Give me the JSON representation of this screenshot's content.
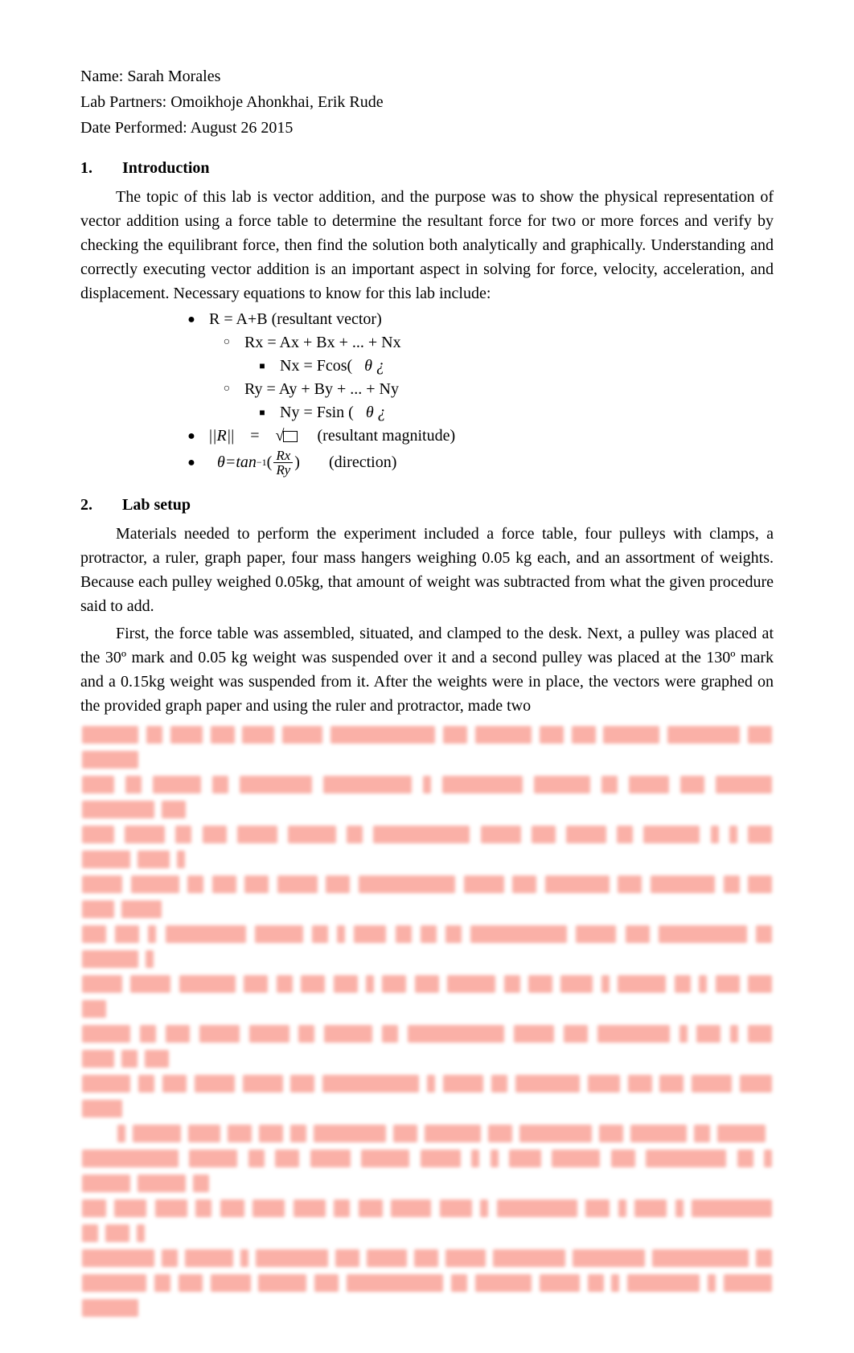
{
  "header": {
    "name_label": "Name: ",
    "name_value": "Sarah Morales",
    "partners_label": "Lab Partners: ",
    "partners_value": "Omoikhoje Ahonkhai, Erik Rude",
    "date_label": "Date Performed: ",
    "date_value": "August 26 2015"
  },
  "sections": {
    "intro": {
      "number": "1.",
      "title": "Introduction",
      "paragraph": "The topic of this lab is vector addition, and the purpose was to show the physical representation of vector addition using a force table to determine the resultant force for two or more forces and verify by checking the equilibrant force, then find the solution both analytically and graphically. Understanding and correctly executing vector addition is an important aspect in solving for force, velocity, acceleration, and displacement. Necessary equations to know for this lab include:"
    },
    "equations": {
      "r_eq": "R = A+B (resultant vector)",
      "rx": "Rx = Ax + Bx + ... + Nx",
      "nx_pre": "Nx = Fcos(",
      "theta1": "θ ¿",
      "ry": "Ry = Ay + By + ... + Ny",
      "ny_pre": "Ny = Fsin (",
      "theta2": "θ ¿",
      "mag_lhs": "|R|",
      "mag_eq": "=",
      "mag_sqrt": "√",
      "mag_label": "(resultant magnitude)",
      "dir_theta": "θ",
      "dir_eq": "=",
      "dir_tan": "tan",
      "dir_exp": "−1",
      "dir_lp": "(",
      "dir_num": "Rx",
      "dir_den": "Ry",
      "dir_rp": ")",
      "dir_label": "(direction)"
    },
    "setup": {
      "number": "2.",
      "title": "Lab setup",
      "paragraph1": "Materials needed to perform the experiment included a force table, four pulleys with clamps, a protractor, a ruler, graph paper, four mass hangers weighing 0.05 kg each, and an assortment of weights. Because each pulley weighed 0.05kg, that amount of weight was subtracted from what the given procedure said to add.",
      "paragraph2": "First, the force table was assembled, situated, and clamped to the desk. Next, a pulley was placed at the 30º mark and 0.05 kg weight was suspended over it and a second pulley was placed at the 130º mark and a 0.15kg weight was suspended from it. After the weights were in place, the vectors were graphed on the provided graph paper and using the ruler and protractor, made two"
    }
  },
  "obscured": {
    "color": "#fab0a7",
    "lines": [
      [
        [
          "xxxxxxx xx xxxx xxx xxxx xxxxx xxxxxxxxxxxxx xxx xxxxxxx xxx xxx xxxxxxx xxxxxxxxx xxx xxxxxxx"
        ]
      ],
      [
        [
          "xxxx xx xxxxxx xx xxxxxxxxx xxxxxxxxxxx x xxxxxxxxxx xxxxxxx xx xxxxx xxx xxxxxxx xxxxxxxxx xxx"
        ]
      ],
      [
        [
          "xxxx xxxxx xx xxx xxxxx xxxxxx xx xxxxxxxxxxxx xxxxx xxx xxxxx xx xxxxxxx x x xxx xxxxxx xxxx x"
        ]
      ],
      [
        [
          "xxxxx xxxxxx xx xxx xxx xxxxx xxx xxxxxxxxxxxx xxxxx xxx xxxxxxxx xxx xxxxxxxx xx xxx xxxx xxxxx"
        ]
      ],
      [
        [
          "xxx xxx x xxxxxxxxxx xxxxxx xx x xxxx xx xx xx xxxxxxxxxxxx xxxxx xxx xxxxxxxxxxx xx xxxxxxx x"
        ]
      ],
      [
        [
          "xxxxx xxxxx xxxxxxx xxx xx xxx xxx x xxx xxx xxxxxx xx xxx xxxx x xxxxxx xx x xxx xxx xxx"
        ]
      ],
      [
        [
          "xxxxxx xx xxx xxxxx xxxxx xx xxxxxx xx xxxxxxxxxxxx xxxxx xxx xxxxxxxxx x xxx x xxx xxxx xx xxx"
        ]
      ],
      [
        [
          "xxxxxx xx xxx xxxxx xxxxx xxx xxxxxxxxxxxx x xxxxx xx xxxxxxxx xxxx xxx xxx xxxxx xxxx xxxxx"
        ]
      ],
      [
        [
          "INDENT",
          "x xxxxxx xxxx xxx xxx xx xxxxxxxxx xxx xxxxxxx xxx xxxxxxxxx xxx xxxxxxx xx xxxxxx"
        ]
      ],
      [
        [
          "xxxxxxxxxxxx xxxxxx xx xxx xxxxx xxxxxx xxxxx x x xxxx xxxxxx xxx xxxxxxxxxx xx x xxxxxx xxxxxx xx"
        ]
      ],
      [
        [
          "xxx xxxx xxxx xx xxx xxxx xxxx xx xxx xxxxx xxxx x xxxxxxxxxx xxx x xxxx x xxxxxxxxxx xx xxx x"
        ]
      ],
      [
        [
          "xxxxxxxxx xx xxxxxx x xxxxxxxxx xxx xxxxx xxx xxxxx xxxxxxxxx xxxxxxxxx xxxxxxxxxxxx xx"
        ]
      ],
      [
        [
          "xxxxxxxx xx xxx xxxxx xxxxxx xxx xxxxxxxxxxxx",
          "xx xxxxxxx xxxxx xx x xxxxxxxxx x xxxxxx xxxxxxx"
        ]
      ]
    ]
  }
}
